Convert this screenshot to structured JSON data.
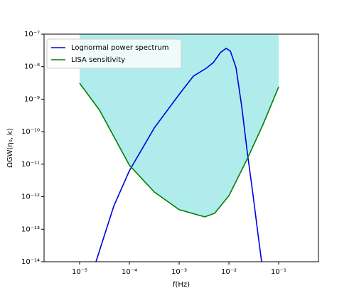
{
  "chart_data": {
    "type": "line",
    "xlabel": "f(Hz)",
    "ylabel": "ΩGW(η₀, k)",
    "xscale": "log",
    "yscale": "log",
    "xlim": [
      1.93e-06,
      0.63
    ],
    "ylim": [
      1e-14,
      1e-07
    ],
    "xticks": [
      {
        "value": 1e-05,
        "label": "10⁻⁵"
      },
      {
        "value": 0.0001,
        "label": "10⁻⁴"
      },
      {
        "value": 0.001,
        "label": "10⁻³"
      },
      {
        "value": 0.01,
        "label": "10⁻²"
      },
      {
        "value": 0.1,
        "label": "10⁻¹"
      }
    ],
    "yticks": [
      {
        "value": 1e-14,
        "label": "10⁻¹⁴"
      },
      {
        "value": 1e-13,
        "label": "10⁻¹³"
      },
      {
        "value": 1e-12,
        "label": "10⁻¹²"
      },
      {
        "value": 1e-11,
        "label": "10⁻¹¹"
      },
      {
        "value": 1e-10,
        "label": "10⁻¹⁰"
      },
      {
        "value": 1e-09,
        "label": "10⁻⁹"
      },
      {
        "value": 1e-08,
        "label": "10⁻⁸"
      },
      {
        "value": 1e-07,
        "label": "10⁻⁷"
      }
    ],
    "legend": "upper left",
    "region_color": "#b0ecec",
    "series": [
      {
        "name": "Lognormal power spectrum",
        "color": "#0000dd",
        "x": [
          2.13e-05,
          4.85e-05,
          0.0001,
          0.000316,
          0.001,
          0.00193,
          0.00349,
          0.00485,
          0.00674,
          0.00877,
          0.0107,
          0.0139,
          0.0181,
          0.0235,
          0.0306,
          0.0385,
          0.0454
        ],
        "values": [
          1e-14,
          5.1e-13,
          6.3e-12,
          1.3e-10,
          1.4e-09,
          5.1e-09,
          8.9e-09,
          1.33e-08,
          2.7e-08,
          3.65e-08,
          3e-08,
          9.3e-09,
          5.9e-10,
          2.2e-11,
          1.1e-12,
          6.8e-14,
          1e-14
        ]
      },
      {
        "name": "LISA sensitivity",
        "color": "#008000",
        "x": [
          1e-05,
          2.51e-05,
          0.0001,
          0.000316,
          0.001,
          0.00327,
          0.00518,
          0.01,
          0.0228,
          0.0485,
          0.1
        ],
        "values": [
          3.1e-09,
          4.6e-10,
          9.3e-12,
          1.4e-12,
          4e-13,
          2.4e-13,
          3.1e-13,
          1.07e-12,
          1.35e-11,
          1.66e-10,
          2.4e-09
        ]
      }
    ]
  }
}
